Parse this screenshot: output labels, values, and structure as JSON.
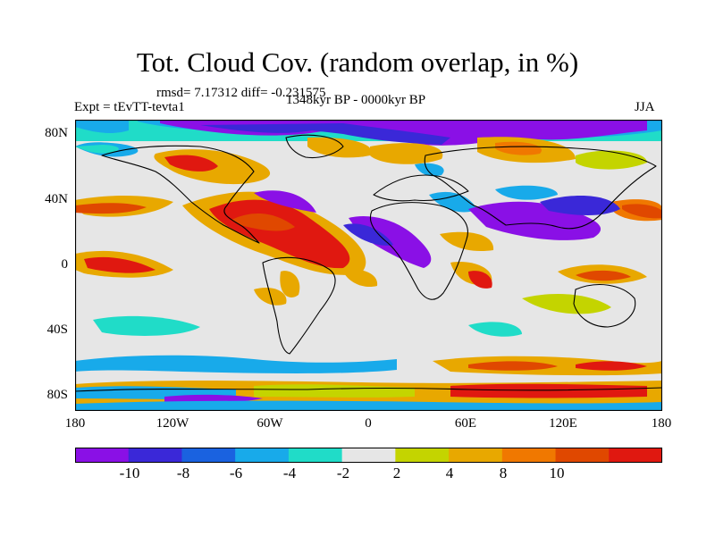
{
  "title": "Tot. Cloud Cov. (random overlap, in %)",
  "stats": "rmsd= 7.17312 diff= -0.231575",
  "experiment": "Expt = tEvTT-tevta1",
  "period": "1348kyr BP - 0000kyr BP",
  "season": "JJA",
  "lat_labels": [
    "80N",
    "40N",
    "0",
    "40S",
    "80S"
  ],
  "lon_labels": [
    "180",
    "120W",
    "60W",
    "0",
    "60E",
    "120E",
    "180"
  ],
  "colorbar": {
    "colors": [
      "#8a10e6",
      "#3a28d8",
      "#1a62e0",
      "#18aaea",
      "#20dcc8",
      "#e6e6e6",
      "#c4d400",
      "#e8a800",
      "#f07800",
      "#e04800",
      "#e01810"
    ],
    "labels": [
      "-10",
      "-8",
      "-6",
      "-4",
      "-2",
      "2",
      "4",
      "8",
      "10"
    ]
  }
}
